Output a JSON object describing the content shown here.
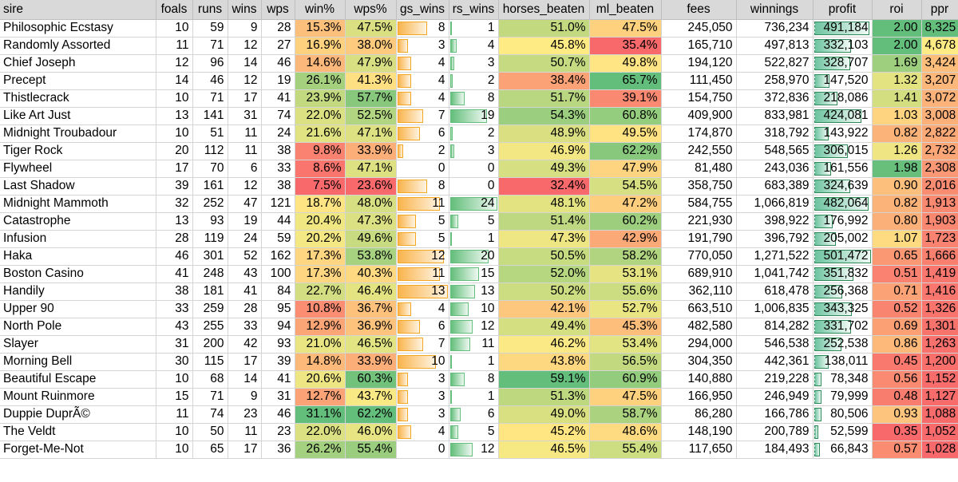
{
  "columns": [
    "sire",
    "foals",
    "runs",
    "wins",
    "wps",
    "win%",
    "wps%",
    "gs_wins",
    "rs_wins",
    "horses_beaten",
    "ml_beaten",
    "fees",
    "winnings",
    "profit",
    "roi",
    "ppr"
  ],
  "colors": {
    "scale_low": "#f8696b",
    "scale_mid": "#ffeb84",
    "scale_high": "#63be7b",
    "bar_gs_wins": "#f5a623",
    "bar_rs_wins": "#63be7b",
    "bar_profit": "#2e8b57",
    "header_bg": "#d9d9d9"
  },
  "rows": [
    {
      "sire": "Philosophic Ecstasy",
      "foals": "10",
      "runs": "59",
      "wins": "9",
      "wps": "28",
      "win_pct": "15.3%",
      "wps_pct": "47.5%",
      "gs_wins": "8",
      "rs_wins": "1",
      "horses_beaten": "51.0%",
      "ml_beaten": "47.5%",
      "fees": "245,050",
      "winnings": "736,234",
      "profit": "491,184",
      "roi": "2.00",
      "ppr": "8,325"
    },
    {
      "sire": "Randomly Assorted",
      "foals": "11",
      "runs": "71",
      "wins": "12",
      "wps": "27",
      "win_pct": "16.9%",
      "wps_pct": "38.0%",
      "gs_wins": "3",
      "rs_wins": "4",
      "horses_beaten": "45.8%",
      "ml_beaten": "35.4%",
      "fees": "165,710",
      "winnings": "497,813",
      "profit": "332,103",
      "roi": "2.00",
      "ppr": "4,678"
    },
    {
      "sire": "Chief Joseph",
      "foals": "12",
      "runs": "96",
      "wins": "14",
      "wps": "46",
      "win_pct": "14.6%",
      "wps_pct": "47.9%",
      "gs_wins": "4",
      "rs_wins": "3",
      "horses_beaten": "50.7%",
      "ml_beaten": "49.8%",
      "fees": "194,120",
      "winnings": "522,827",
      "profit": "328,707",
      "roi": "1.69",
      "ppr": "3,424"
    },
    {
      "sire": "Precept",
      "foals": "14",
      "runs": "46",
      "wins": "12",
      "wps": "19",
      "win_pct": "26.1%",
      "wps_pct": "41.3%",
      "gs_wins": "4",
      "rs_wins": "2",
      "horses_beaten": "38.4%",
      "ml_beaten": "65.7%",
      "fees": "111,450",
      "winnings": "258,970",
      "profit": "147,520",
      "roi": "1.32",
      "ppr": "3,207"
    },
    {
      "sire": "Thistlecrack",
      "foals": "10",
      "runs": "71",
      "wins": "17",
      "wps": "41",
      "win_pct": "23.9%",
      "wps_pct": "57.7%",
      "gs_wins": "4",
      "rs_wins": "8",
      "horses_beaten": "51.7%",
      "ml_beaten": "39.1%",
      "fees": "154,750",
      "winnings": "372,836",
      "profit": "218,086",
      "roi": "1.41",
      "ppr": "3,072"
    },
    {
      "sire": "Like Art Just",
      "foals": "13",
      "runs": "141",
      "wins": "31",
      "wps": "74",
      "win_pct": "22.0%",
      "wps_pct": "52.5%",
      "gs_wins": "7",
      "rs_wins": "19",
      "horses_beaten": "54.3%",
      "ml_beaten": "60.8%",
      "fees": "409,900",
      "winnings": "833,981",
      "profit": "424,081",
      "roi": "1.03",
      "ppr": "3,008"
    },
    {
      "sire": "Midnight Troubadour",
      "foals": "10",
      "runs": "51",
      "wins": "11",
      "wps": "24",
      "win_pct": "21.6%",
      "wps_pct": "47.1%",
      "gs_wins": "6",
      "rs_wins": "2",
      "horses_beaten": "48.9%",
      "ml_beaten": "49.5%",
      "fees": "174,870",
      "winnings": "318,792",
      "profit": "143,922",
      "roi": "0.82",
      "ppr": "2,822"
    },
    {
      "sire": "Tiger Rock",
      "foals": "20",
      "runs": "112",
      "wins": "11",
      "wps": "38",
      "win_pct": "9.8%",
      "wps_pct": "33.9%",
      "gs_wins": "2",
      "rs_wins": "3",
      "horses_beaten": "46.9%",
      "ml_beaten": "62.2%",
      "fees": "242,550",
      "winnings": "548,565",
      "profit": "306,015",
      "roi": "1.26",
      "ppr": "2,732"
    },
    {
      "sire": "Flywheel",
      "foals": "17",
      "runs": "70",
      "wins": "6",
      "wps": "33",
      "win_pct": "8.6%",
      "wps_pct": "47.1%",
      "gs_wins": "0",
      "rs_wins": "0",
      "horses_beaten": "49.3%",
      "ml_beaten": "47.9%",
      "fees": "81,480",
      "winnings": "243,036",
      "profit": "161,556",
      "roi": "1.98",
      "ppr": "2,308"
    },
    {
      "sire": "Last Shadow",
      "foals": "39",
      "runs": "161",
      "wins": "12",
      "wps": "38",
      "win_pct": "7.5%",
      "wps_pct": "23.6%",
      "gs_wins": "8",
      "rs_wins": "0",
      "horses_beaten": "32.4%",
      "ml_beaten": "54.5%",
      "fees": "358,750",
      "winnings": "683,389",
      "profit": "324,639",
      "roi": "0.90",
      "ppr": "2,016"
    },
    {
      "sire": "Midnight Mammoth",
      "foals": "32",
      "runs": "252",
      "wins": "47",
      "wps": "121",
      "win_pct": "18.7%",
      "wps_pct": "48.0%",
      "gs_wins": "11",
      "rs_wins": "24",
      "horses_beaten": "48.1%",
      "ml_beaten": "47.2%",
      "fees": "584,755",
      "winnings": "1,066,819",
      "profit": "482,064",
      "roi": "0.82",
      "ppr": "1,913"
    },
    {
      "sire": "Catastrophe",
      "foals": "13",
      "runs": "93",
      "wins": "19",
      "wps": "44",
      "win_pct": "20.4%",
      "wps_pct": "47.3%",
      "gs_wins": "5",
      "rs_wins": "5",
      "horses_beaten": "51.4%",
      "ml_beaten": "60.2%",
      "fees": "221,930",
      "winnings": "398,922",
      "profit": "176,992",
      "roi": "0.80",
      "ppr": "1,903"
    },
    {
      "sire": "Infusion",
      "foals": "28",
      "runs": "119",
      "wins": "24",
      "wps": "59",
      "win_pct": "20.2%",
      "wps_pct": "49.6%",
      "gs_wins": "5",
      "rs_wins": "1",
      "horses_beaten": "47.3%",
      "ml_beaten": "42.9%",
      "fees": "191,790",
      "winnings": "396,792",
      "profit": "205,002",
      "roi": "1.07",
      "ppr": "1,723"
    },
    {
      "sire": "Haka",
      "foals": "46",
      "runs": "301",
      "wins": "52",
      "wps": "162",
      "win_pct": "17.3%",
      "wps_pct": "53.8%",
      "gs_wins": "12",
      "rs_wins": "20",
      "horses_beaten": "50.5%",
      "ml_beaten": "58.2%",
      "fees": "770,050",
      "winnings": "1,271,522",
      "profit": "501,472",
      "roi": "0.65",
      "ppr": "1,666"
    },
    {
      "sire": "Boston Casino",
      "foals": "41",
      "runs": "248",
      "wins": "43",
      "wps": "100",
      "win_pct": "17.3%",
      "wps_pct": "40.3%",
      "gs_wins": "11",
      "rs_wins": "15",
      "horses_beaten": "52.0%",
      "ml_beaten": "53.1%",
      "fees": "689,910",
      "winnings": "1,041,742",
      "profit": "351,832",
      "roi": "0.51",
      "ppr": "1,419"
    },
    {
      "sire": "Handily",
      "foals": "38",
      "runs": "181",
      "wins": "41",
      "wps": "84",
      "win_pct": "22.7%",
      "wps_pct": "46.4%",
      "gs_wins": "13",
      "rs_wins": "13",
      "horses_beaten": "50.2%",
      "ml_beaten": "55.6%",
      "fees": "362,110",
      "winnings": "618,478",
      "profit": "256,368",
      "roi": "0.71",
      "ppr": "1,416"
    },
    {
      "sire": "Upper 90",
      "foals": "33",
      "runs": "259",
      "wins": "28",
      "wps": "95",
      "win_pct": "10.8%",
      "wps_pct": "36.7%",
      "gs_wins": "4",
      "rs_wins": "10",
      "horses_beaten": "42.1%",
      "ml_beaten": "52.7%",
      "fees": "663,510",
      "winnings": "1,006,835",
      "profit": "343,325",
      "roi": "0.52",
      "ppr": "1,326"
    },
    {
      "sire": "North Pole",
      "foals": "43",
      "runs": "255",
      "wins": "33",
      "wps": "94",
      "win_pct": "12.9%",
      "wps_pct": "36.9%",
      "gs_wins": "6",
      "rs_wins": "12",
      "horses_beaten": "49.4%",
      "ml_beaten": "45.3%",
      "fees": "482,580",
      "winnings": "814,282",
      "profit": "331,702",
      "roi": "0.69",
      "ppr": "1,301"
    },
    {
      "sire": "Slayer",
      "foals": "31",
      "runs": "200",
      "wins": "42",
      "wps": "93",
      "win_pct": "21.0%",
      "wps_pct": "46.5%",
      "gs_wins": "7",
      "rs_wins": "11",
      "horses_beaten": "46.2%",
      "ml_beaten": "53.4%",
      "fees": "294,000",
      "winnings": "546,538",
      "profit": "252,538",
      "roi": "0.86",
      "ppr": "1,263"
    },
    {
      "sire": "Morning Bell",
      "foals": "30",
      "runs": "115",
      "wins": "17",
      "wps": "39",
      "win_pct": "14.8%",
      "wps_pct": "33.9%",
      "gs_wins": "10",
      "rs_wins": "1",
      "horses_beaten": "43.8%",
      "ml_beaten": "56.5%",
      "fees": "304,350",
      "winnings": "442,361",
      "profit": "138,011",
      "roi": "0.45",
      "ppr": "1,200"
    },
    {
      "sire": "Beautiful Escape",
      "foals": "10",
      "runs": "68",
      "wins": "14",
      "wps": "41",
      "win_pct": "20.6%",
      "wps_pct": "60.3%",
      "gs_wins": "3",
      "rs_wins": "8",
      "horses_beaten": "59.1%",
      "ml_beaten": "60.9%",
      "fees": "140,880",
      "winnings": "219,228",
      "profit": "78,348",
      "roi": "0.56",
      "ppr": "1,152"
    },
    {
      "sire": "Mount Ruinmore",
      "foals": "15",
      "runs": "71",
      "wins": "9",
      "wps": "31",
      "win_pct": "12.7%",
      "wps_pct": "43.7%",
      "gs_wins": "3",
      "rs_wins": "1",
      "horses_beaten": "51.3%",
      "ml_beaten": "47.5%",
      "fees": "166,950",
      "winnings": "246,949",
      "profit": "79,999",
      "roi": "0.48",
      "ppr": "1,127"
    },
    {
      "sire": "Duppie DuprÃ©",
      "foals": "11",
      "runs": "74",
      "wins": "23",
      "wps": "46",
      "win_pct": "31.1%",
      "wps_pct": "62.2%",
      "gs_wins": "3",
      "rs_wins": "6",
      "horses_beaten": "49.0%",
      "ml_beaten": "58.7%",
      "fees": "86,280",
      "winnings": "166,786",
      "profit": "80,506",
      "roi": "0.93",
      "ppr": "1,088"
    },
    {
      "sire": "The Veldt",
      "foals": "10",
      "runs": "50",
      "wins": "11",
      "wps": "23",
      "win_pct": "22.0%",
      "wps_pct": "46.0%",
      "gs_wins": "4",
      "rs_wins": "5",
      "horses_beaten": "45.2%",
      "ml_beaten": "48.6%",
      "fees": "148,190",
      "winnings": "200,789",
      "profit": "52,599",
      "roi": "0.35",
      "ppr": "1,052"
    },
    {
      "sire": "Forget-Me-Not",
      "foals": "10",
      "runs": "65",
      "wins": "17",
      "wps": "36",
      "win_pct": "26.2%",
      "wps_pct": "55.4%",
      "gs_wins": "0",
      "rs_wins": "12",
      "horses_beaten": "46.5%",
      "ml_beaten": "55.4%",
      "fees": "117,650",
      "winnings": "184,493",
      "profit": "66,843",
      "roi": "0.57",
      "ppr": "1,028"
    }
  ]
}
